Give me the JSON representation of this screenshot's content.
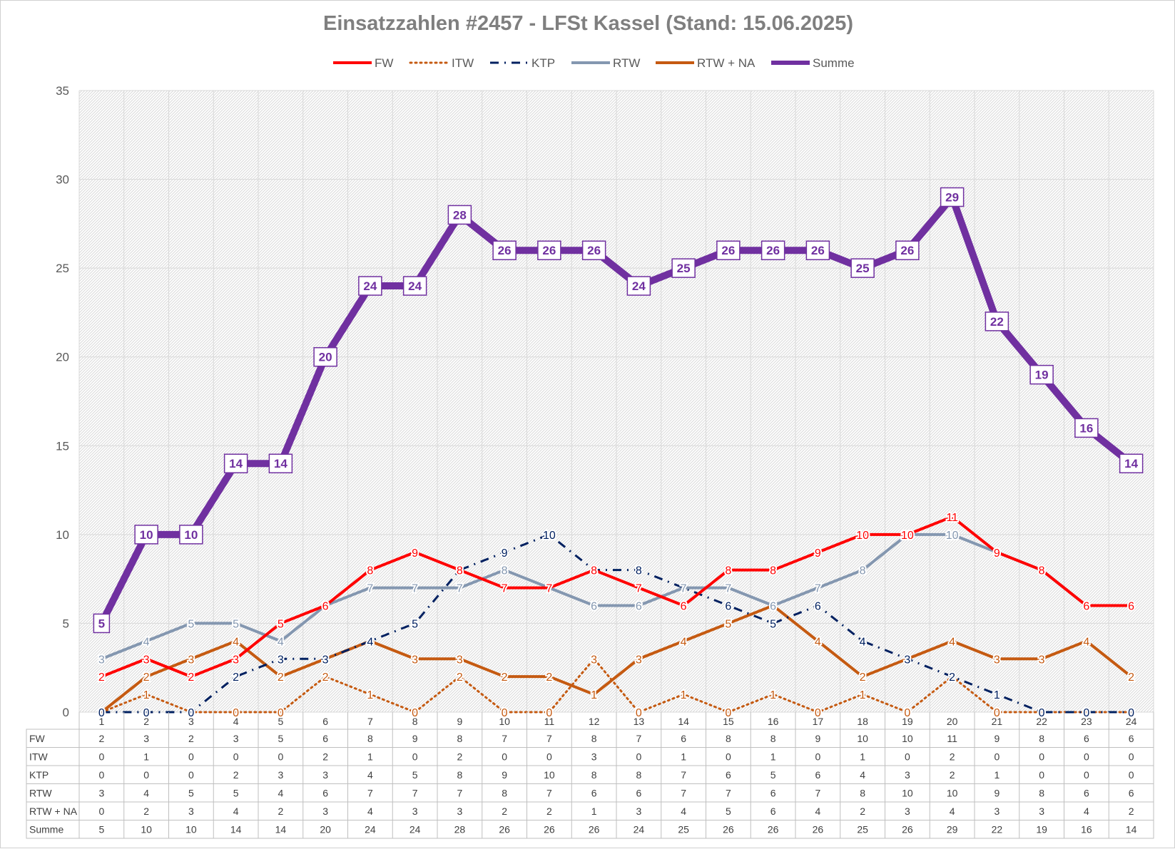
{
  "chart_data": {
    "type": "line",
    "title": "Einsatzzahlen #2457 - LFSt Kassel (Stand: 15.06.2025)",
    "xlabel": "",
    "ylabel": "",
    "ylim": [
      0,
      35
    ],
    "yticks": [
      0,
      5,
      10,
      15,
      20,
      25,
      30,
      35
    ],
    "grid": true,
    "legend_position": "top",
    "categories": [
      "1",
      "2",
      "3",
      "4",
      "5",
      "6",
      "7",
      "8",
      "9",
      "10",
      "11",
      "12",
      "13",
      "14",
      "15",
      "16",
      "17",
      "18",
      "19",
      "20",
      "21",
      "22",
      "23",
      "24"
    ],
    "series": [
      {
        "name": "FW",
        "color": "#ff0000",
        "style": "solid",
        "values": [
          2,
          3,
          2,
          3,
          5,
          6,
          8,
          9,
          8,
          7,
          7,
          8,
          7,
          6,
          8,
          8,
          9,
          10,
          10,
          11,
          9,
          8,
          6,
          6
        ]
      },
      {
        "name": "ITW",
        "color": "#c55a11",
        "style": "dotted",
        "values": [
          0,
          1,
          0,
          0,
          0,
          2,
          1,
          0,
          2,
          0,
          0,
          3,
          0,
          1,
          0,
          1,
          0,
          1,
          0,
          2,
          0,
          0,
          0,
          0
        ]
      },
      {
        "name": "KTP",
        "color": "#002060",
        "style": "dash-dot",
        "values": [
          0,
          0,
          0,
          2,
          3,
          3,
          4,
          5,
          8,
          9,
          10,
          8,
          8,
          7,
          6,
          5,
          6,
          4,
          3,
          2,
          1,
          0,
          0,
          0
        ]
      },
      {
        "name": "RTW",
        "color": "#8497b0",
        "style": "solid",
        "values": [
          3,
          4,
          5,
          5,
          4,
          6,
          7,
          7,
          7,
          8,
          7,
          6,
          6,
          7,
          7,
          6,
          7,
          8,
          10,
          10,
          9,
          8,
          6,
          6
        ]
      },
      {
        "name": "RTW + NA",
        "color": "#c55a11",
        "style": "solid",
        "values": [
          0,
          2,
          3,
          4,
          2,
          3,
          4,
          3,
          3,
          2,
          2,
          1,
          3,
          4,
          5,
          6,
          4,
          2,
          3,
          4,
          3,
          3,
          4,
          2
        ]
      },
      {
        "name": "Summe",
        "color": "#7030a0",
        "style": "thick",
        "values": [
          5,
          10,
          10,
          14,
          14,
          20,
          24,
          24,
          28,
          26,
          26,
          26,
          24,
          25,
          26,
          26,
          26,
          25,
          26,
          29,
          22,
          19,
          16,
          14
        ]
      }
    ],
    "data_table": true
  }
}
